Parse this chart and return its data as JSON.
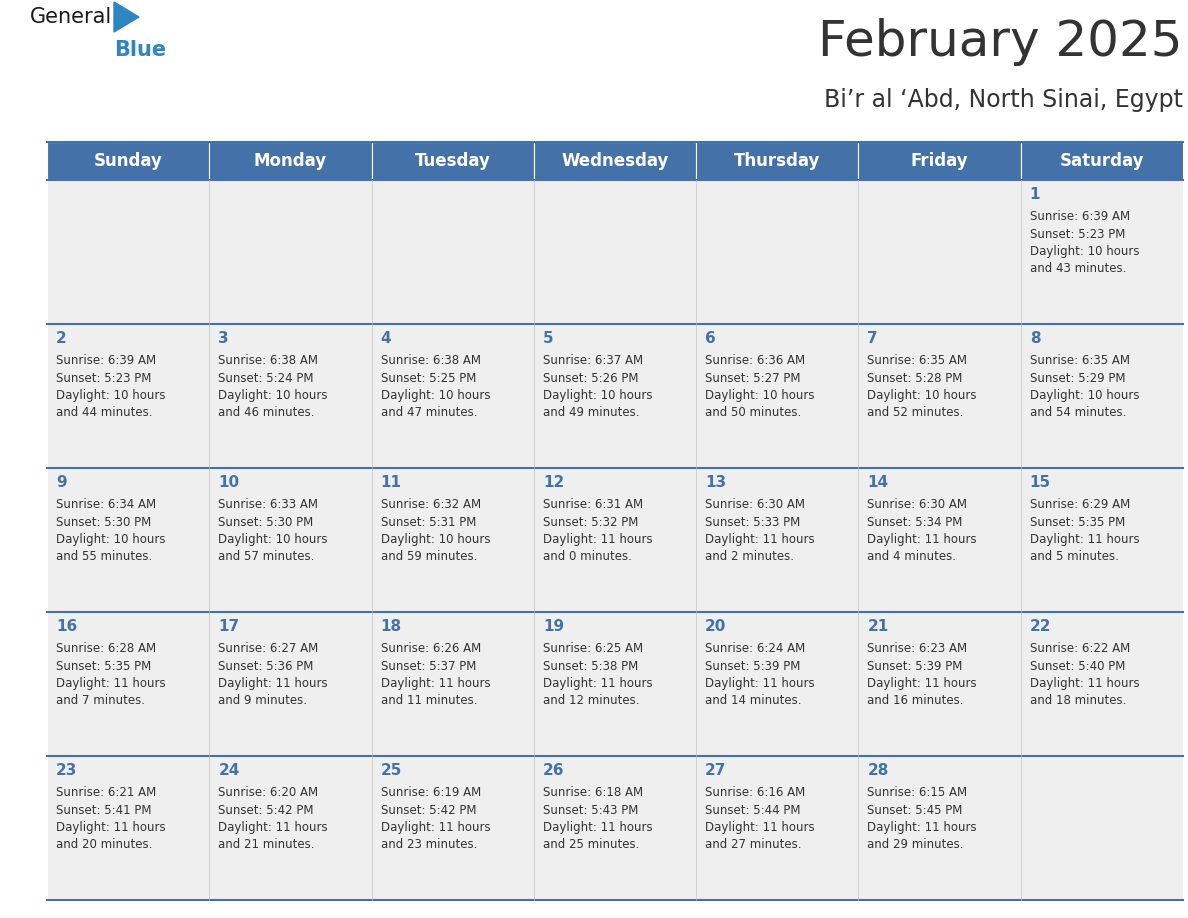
{
  "title": "February 2025",
  "subtitle": "Bi’r al ‘Abd, North Sinai, Egypt",
  "header_bg": "#4472A8",
  "header_text_color": "#FFFFFF",
  "cell_bg": "#EFEFEF",
  "cell_bg_white": "#FFFFFF",
  "day_number_color": "#4472A8",
  "text_color": "#333333",
  "border_color": "#4472A8",
  "days_of_week": [
    "Sunday",
    "Monday",
    "Tuesday",
    "Wednesday",
    "Thursday",
    "Friday",
    "Saturday"
  ],
  "weeks": [
    [
      {
        "day": null,
        "info": null
      },
      {
        "day": null,
        "info": null
      },
      {
        "day": null,
        "info": null
      },
      {
        "day": null,
        "info": null
      },
      {
        "day": null,
        "info": null
      },
      {
        "day": null,
        "info": null
      },
      {
        "day": 1,
        "info": "Sunrise: 6:39 AM\nSunset: 5:23 PM\nDaylight: 10 hours\nand 43 minutes."
      }
    ],
    [
      {
        "day": 2,
        "info": "Sunrise: 6:39 AM\nSunset: 5:23 PM\nDaylight: 10 hours\nand 44 minutes."
      },
      {
        "day": 3,
        "info": "Sunrise: 6:38 AM\nSunset: 5:24 PM\nDaylight: 10 hours\nand 46 minutes."
      },
      {
        "day": 4,
        "info": "Sunrise: 6:38 AM\nSunset: 5:25 PM\nDaylight: 10 hours\nand 47 minutes."
      },
      {
        "day": 5,
        "info": "Sunrise: 6:37 AM\nSunset: 5:26 PM\nDaylight: 10 hours\nand 49 minutes."
      },
      {
        "day": 6,
        "info": "Sunrise: 6:36 AM\nSunset: 5:27 PM\nDaylight: 10 hours\nand 50 minutes."
      },
      {
        "day": 7,
        "info": "Sunrise: 6:35 AM\nSunset: 5:28 PM\nDaylight: 10 hours\nand 52 minutes."
      },
      {
        "day": 8,
        "info": "Sunrise: 6:35 AM\nSunset: 5:29 PM\nDaylight: 10 hours\nand 54 minutes."
      }
    ],
    [
      {
        "day": 9,
        "info": "Sunrise: 6:34 AM\nSunset: 5:30 PM\nDaylight: 10 hours\nand 55 minutes."
      },
      {
        "day": 10,
        "info": "Sunrise: 6:33 AM\nSunset: 5:30 PM\nDaylight: 10 hours\nand 57 minutes."
      },
      {
        "day": 11,
        "info": "Sunrise: 6:32 AM\nSunset: 5:31 PM\nDaylight: 10 hours\nand 59 minutes."
      },
      {
        "day": 12,
        "info": "Sunrise: 6:31 AM\nSunset: 5:32 PM\nDaylight: 11 hours\nand 0 minutes."
      },
      {
        "day": 13,
        "info": "Sunrise: 6:30 AM\nSunset: 5:33 PM\nDaylight: 11 hours\nand 2 minutes."
      },
      {
        "day": 14,
        "info": "Sunrise: 6:30 AM\nSunset: 5:34 PM\nDaylight: 11 hours\nand 4 minutes."
      },
      {
        "day": 15,
        "info": "Sunrise: 6:29 AM\nSunset: 5:35 PM\nDaylight: 11 hours\nand 5 minutes."
      }
    ],
    [
      {
        "day": 16,
        "info": "Sunrise: 6:28 AM\nSunset: 5:35 PM\nDaylight: 11 hours\nand 7 minutes."
      },
      {
        "day": 17,
        "info": "Sunrise: 6:27 AM\nSunset: 5:36 PM\nDaylight: 11 hours\nand 9 minutes."
      },
      {
        "day": 18,
        "info": "Sunrise: 6:26 AM\nSunset: 5:37 PM\nDaylight: 11 hours\nand 11 minutes."
      },
      {
        "day": 19,
        "info": "Sunrise: 6:25 AM\nSunset: 5:38 PM\nDaylight: 11 hours\nand 12 minutes."
      },
      {
        "day": 20,
        "info": "Sunrise: 6:24 AM\nSunset: 5:39 PM\nDaylight: 11 hours\nand 14 minutes."
      },
      {
        "day": 21,
        "info": "Sunrise: 6:23 AM\nSunset: 5:39 PM\nDaylight: 11 hours\nand 16 minutes."
      },
      {
        "day": 22,
        "info": "Sunrise: 6:22 AM\nSunset: 5:40 PM\nDaylight: 11 hours\nand 18 minutes."
      }
    ],
    [
      {
        "day": 23,
        "info": "Sunrise: 6:21 AM\nSunset: 5:41 PM\nDaylight: 11 hours\nand 20 minutes."
      },
      {
        "day": 24,
        "info": "Sunrise: 6:20 AM\nSunset: 5:42 PM\nDaylight: 11 hours\nand 21 minutes."
      },
      {
        "day": 25,
        "info": "Sunrise: 6:19 AM\nSunset: 5:42 PM\nDaylight: 11 hours\nand 23 minutes."
      },
      {
        "day": 26,
        "info": "Sunrise: 6:18 AM\nSunset: 5:43 PM\nDaylight: 11 hours\nand 25 minutes."
      },
      {
        "day": 27,
        "info": "Sunrise: 6:16 AM\nSunset: 5:44 PM\nDaylight: 11 hours\nand 27 minutes."
      },
      {
        "day": 28,
        "info": "Sunrise: 6:15 AM\nSunset: 5:45 PM\nDaylight: 11 hours\nand 29 minutes."
      },
      {
        "day": null,
        "info": null
      }
    ]
  ],
  "logo_general_color": "#1a1a1a",
  "logo_blue_color": "#2E86C1",
  "fig_width": 11.88,
  "fig_height": 9.18,
  "title_fontsize": 36,
  "subtitle_fontsize": 17,
  "header_fontsize": 12,
  "day_num_fontsize": 11,
  "info_fontsize": 8.5
}
